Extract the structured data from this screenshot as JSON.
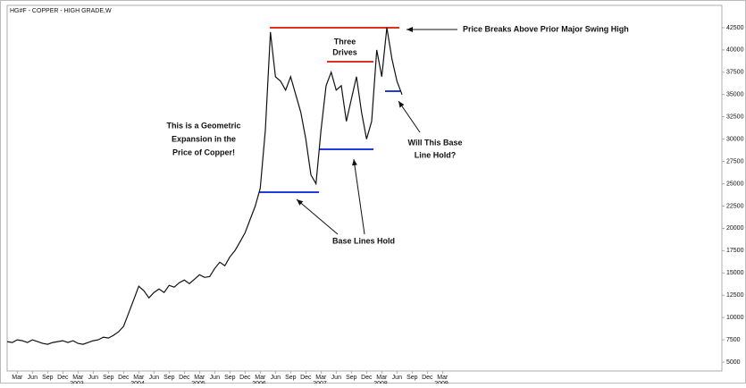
{
  "chart_data": {
    "type": "line",
    "title": "HG#F - COPPER - HIGH GRADE,W",
    "color": "#111111",
    "x": [
      "2002-01",
      "2002-02",
      "2002-03",
      "2002-04",
      "2002-05",
      "2002-06",
      "2002-07",
      "2002-08",
      "2002-09",
      "2002-10",
      "2002-11",
      "2002-12",
      "2003-01",
      "2003-02",
      "2003-03",
      "2003-04",
      "2003-05",
      "2003-06",
      "2003-07",
      "2003-08",
      "2003-09",
      "2003-10",
      "2003-11",
      "2003-12",
      "2004-01",
      "2004-02",
      "2004-03",
      "2004-04",
      "2004-05",
      "2004-06",
      "2004-07",
      "2004-08",
      "2004-09",
      "2004-10",
      "2004-11",
      "2004-12",
      "2005-01",
      "2005-02",
      "2005-03",
      "2005-04",
      "2005-05",
      "2005-06",
      "2005-07",
      "2005-08",
      "2005-09",
      "2005-10",
      "2005-11",
      "2005-12",
      "2006-01",
      "2006-02",
      "2006-03",
      "2006-04",
      "2006-05",
      "2006-06",
      "2006-07",
      "2006-08",
      "2006-09",
      "2006-10",
      "2006-11",
      "2006-12",
      "2007-01",
      "2007-02",
      "2007-03",
      "2007-04",
      "2007-05",
      "2007-06",
      "2007-07",
      "2007-08",
      "2007-09",
      "2007-10",
      "2007-11",
      "2007-12",
      "2008-01",
      "2008-02",
      "2008-03",
      "2008-04",
      "2008-05",
      "2008-06",
      "2008-07"
    ],
    "series": [
      {
        "name": "HG#F",
        "color": "#111111",
        "values": [
          7300,
          7200,
          7500,
          7400,
          7200,
          7500,
          7300,
          7100,
          7000,
          7200,
          7300,
          7400,
          7200,
          7400,
          7100,
          7000,
          7200,
          7400,
          7500,
          7800,
          7700,
          8000,
          8400,
          9000,
          10500,
          12000,
          13500,
          13000,
          12200,
          12800,
          13200,
          12800,
          13600,
          13400,
          13900,
          14200,
          13800,
          14300,
          14800,
          14500,
          14600,
          15500,
          16200,
          15800,
          16800,
          17500,
          18500,
          19500,
          21000,
          22500,
          24500,
          31000,
          42000,
          37000,
          36500,
          35500,
          37000,
          35000,
          33000,
          30000,
          26000,
          25000,
          31000,
          36000,
          37500,
          35500,
          36000,
          32000,
          34500,
          37000,
          33000,
          30000,
          32000,
          40000,
          37000,
          42500,
          39000,
          36500,
          35000
        ]
      }
    ],
    "ylim": [
      4000,
      45000
    ],
    "yticks": [
      5000,
      7500,
      10000,
      12500,
      15000,
      17500,
      20000,
      22500,
      25000,
      27500,
      30000,
      32500,
      35000,
      37500,
      40000,
      42500
    ],
    "xticks": [
      {
        "value": "2002-03",
        "label": "Mar"
      },
      {
        "value": "2002-06",
        "label": "Jun"
      },
      {
        "value": "2002-09",
        "label": "Sep"
      },
      {
        "value": "2002-12",
        "label": "Dec"
      },
      {
        "value": "2003-03",
        "label": "Mar"
      },
      {
        "value": "2003-06",
        "label": "Jun"
      },
      {
        "value": "2003-09",
        "label": "Sep"
      },
      {
        "value": "2003-12",
        "label": "Dec"
      },
      {
        "value": "2004-03",
        "label": "Mar"
      },
      {
        "value": "2004-06",
        "label": "Jun"
      },
      {
        "value": "2004-09",
        "label": "Sep"
      },
      {
        "value": "2004-12",
        "label": "Dec"
      },
      {
        "value": "2005-03",
        "label": "Mar"
      },
      {
        "value": "2005-06",
        "label": "Jun"
      },
      {
        "value": "2005-09",
        "label": "Sep"
      },
      {
        "value": "2005-12",
        "label": "Dec"
      },
      {
        "value": "2006-03",
        "label": "Mar"
      },
      {
        "value": "2006-06",
        "label": "Jun"
      },
      {
        "value": "2006-09",
        "label": "Sep"
      },
      {
        "value": "2006-12",
        "label": "Dec"
      },
      {
        "value": "2007-03",
        "label": "Mar"
      },
      {
        "value": "2007-06",
        "label": "Jun"
      },
      {
        "value": "2007-09",
        "label": "Sep"
      },
      {
        "value": "2007-12",
        "label": "Dec"
      },
      {
        "value": "2008-03",
        "label": "Mar"
      },
      {
        "value": "2008-06",
        "label": "Jun"
      },
      {
        "value": "2008-09",
        "label": "Sep"
      },
      {
        "value": "2008-12",
        "label": "Dec"
      },
      {
        "value": "2009-03",
        "label": "Mar"
      }
    ],
    "years": [
      "2003",
      "2004",
      "2005",
      "2006",
      "2007",
      "2008",
      "2009"
    ],
    "annotations": {
      "breakout": "Price Breaks Above Prior Major Swing High",
      "three_drives": [
        "Three",
        "Drives"
      ],
      "geometric": [
        "This is a Geometric",
        "Expansion in the",
        "Price of Copper!"
      ],
      "base_hold": [
        "Will This Base",
        "Line Hold?"
      ],
      "base_lines": "Base Lines Hold"
    }
  }
}
